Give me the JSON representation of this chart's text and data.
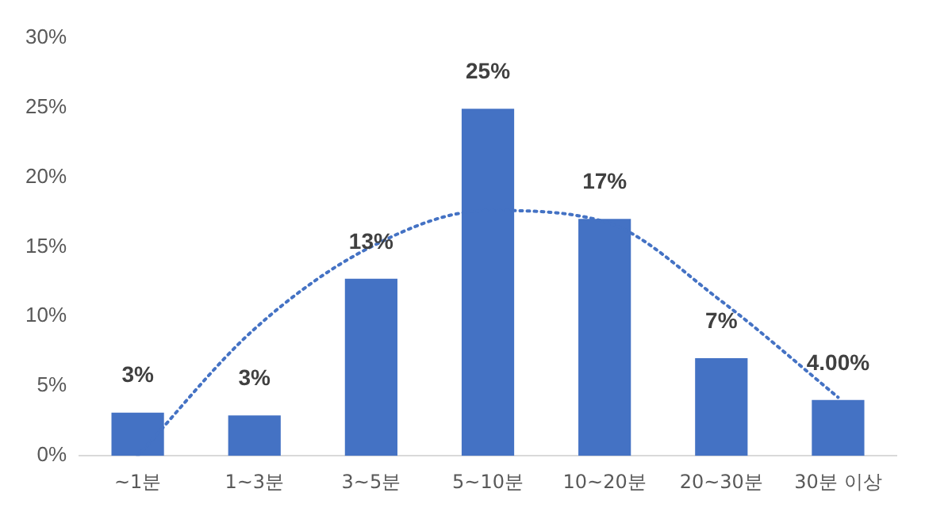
{
  "chart_data": {
    "type": "bar",
    "categories": [
      "~1분",
      "1~3분",
      "3~5분",
      "5~10분",
      "10~20분",
      "20~30분",
      "30분 이상"
    ],
    "series": [
      {
        "color": "#4472c4",
        "values": [
          3.1,
          2.9,
          12.7,
          24.9,
          17,
          7,
          4
        ],
        "value_labels": [
          "3%",
          "3%",
          "13%",
          "25%",
          "17%",
          "7%",
          "4.00%"
        ]
      },
      {
        "type": "line",
        "color": "#4472c4",
        "line_style": "dotted",
        "marker": "none",
        "values": [
          0,
          9.1,
          15,
          17.6,
          16.8,
          11.1,
          4.2
        ]
      }
    ],
    "ylim": [
      0,
      30
    ],
    "yticks": [
      {
        "value": 0,
        "label": "0%"
      },
      {
        "value": 5,
        "label": "5%"
      },
      {
        "value": 10,
        "label": "10%"
      },
      {
        "value": 15,
        "label": "15%"
      },
      {
        "value": 20,
        "label": "20%"
      },
      {
        "value": 25,
        "label": "25%"
      },
      {
        "value": 30,
        "label": "30%"
      }
    ],
    "grid": false,
    "legend": false
  }
}
